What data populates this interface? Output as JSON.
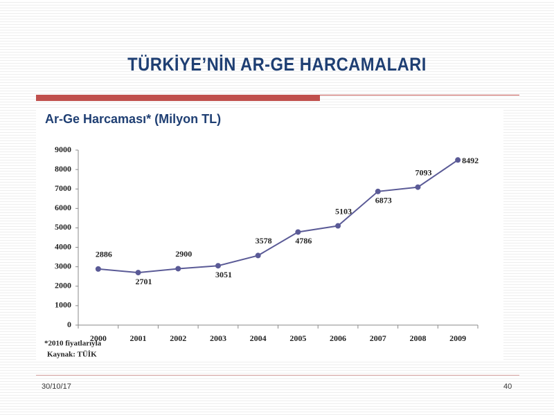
{
  "slide": {
    "title": "TÜRKİYE’NİN AR-GE HARCAMALARI",
    "date": "30/10/17",
    "page_number": "40"
  },
  "chart_data": {
    "type": "line",
    "title": "Ar-Ge Harcaması* (Milyon TL)",
    "categories": [
      "2000",
      "2001",
      "2002",
      "2003",
      "2004",
      "2005",
      "2006",
      "2007",
      "2008",
      "2009"
    ],
    "values": [
      2886,
      2701,
      2900,
      3051,
      3578,
      4786,
      5103,
      6873,
      7093,
      8492
    ],
    "color": "#5a5a96",
    "ylim": [
      0,
      9000
    ],
    "yticks": [
      0,
      1000,
      2000,
      3000,
      4000,
      5000,
      6000,
      7000,
      8000,
      9000
    ],
    "grid": false,
    "footnotes": [
      "*2010 fiyatlarıyla",
      "Kaynak: TÜİK"
    ]
  }
}
